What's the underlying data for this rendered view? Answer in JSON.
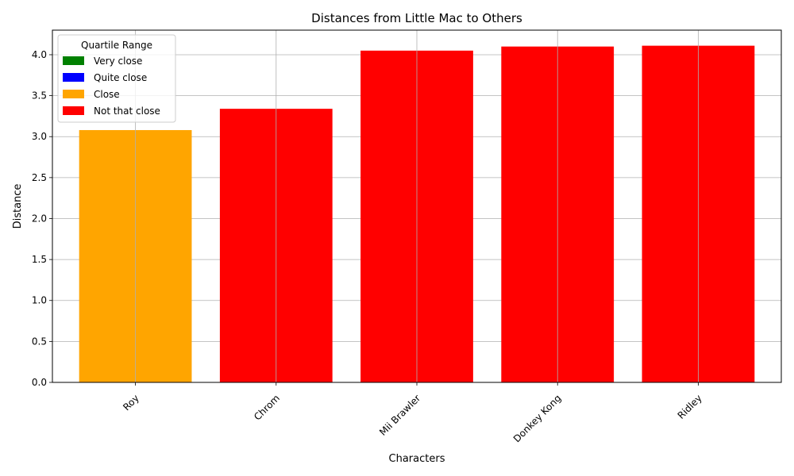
{
  "chart_data": {
    "type": "bar",
    "title": "Distances from Little Mac to Others",
    "xlabel": "Characters",
    "ylabel": "Distance",
    "categories": [
      "Roy",
      "Chrom",
      "Mii Brawler",
      "Donkey Kong",
      "Ridley"
    ],
    "values": [
      3.08,
      3.34,
      4.05,
      4.1,
      4.11
    ],
    "bar_colors": [
      "#ffa500",
      "#ff0000",
      "#ff0000",
      "#ff0000",
      "#ff0000"
    ],
    "ylim": [
      0,
      4.3
    ],
    "yticks": [
      "0.0",
      "0.5",
      "1.0",
      "1.5",
      "2.0",
      "2.5",
      "3.0",
      "3.5",
      "4.0"
    ],
    "grid": true,
    "legend": {
      "title": "Quartile Range",
      "placement": "top-left",
      "entries": [
        {
          "label": "Very close",
          "color": "#008000"
        },
        {
          "label": "Quite close",
          "color": "#0000ff"
        },
        {
          "label": "Close",
          "color": "#ffa500"
        },
        {
          "label": "Not that close",
          "color": "#ff0000"
        }
      ]
    }
  }
}
